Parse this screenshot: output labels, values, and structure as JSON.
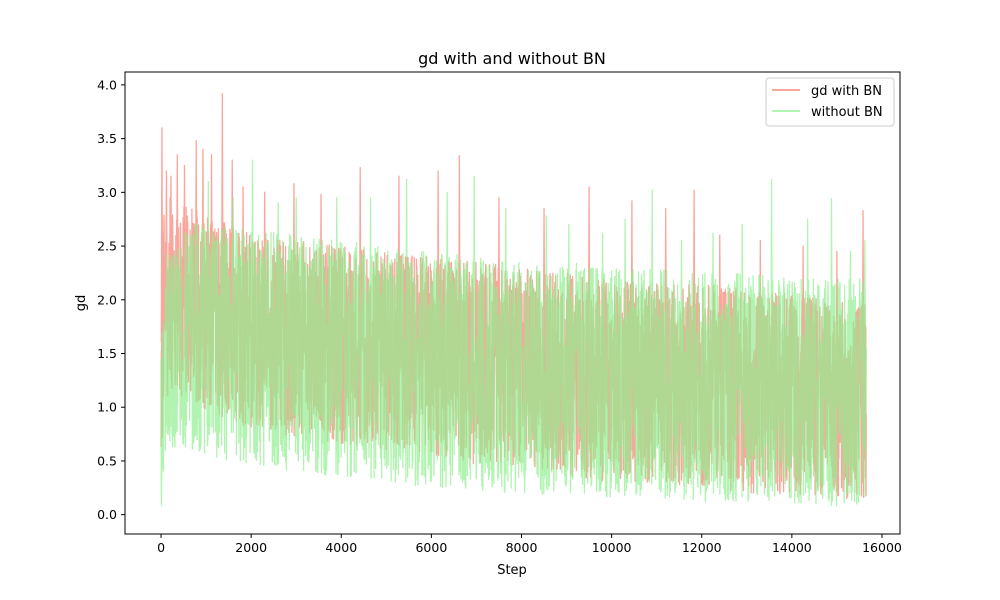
{
  "chart_data": {
    "type": "line",
    "title": "gd with and without BN",
    "xlabel": "Step",
    "ylabel": "gd",
    "xlim": [
      -800,
      16400
    ],
    "ylim": [
      -0.18,
      4.12
    ],
    "xticks": [
      0,
      2000,
      4000,
      6000,
      8000,
      10000,
      12000,
      14000,
      16000
    ],
    "xtick_labels": [
      "0",
      "2000",
      "4000",
      "6000",
      "8000",
      "10000",
      "12000",
      "14000",
      "16000"
    ],
    "yticks": [
      0.0,
      0.5,
      1.0,
      1.5,
      2.0,
      2.5,
      3.0,
      3.5,
      4.0
    ],
    "ytick_labels": [
      "0.0",
      "0.5",
      "1.0",
      "1.5",
      "2.0",
      "2.5",
      "3.0",
      "3.5",
      "4.0"
    ],
    "grid": false,
    "legend_position": "upper right",
    "series": [
      {
        "name": "gd with BN",
        "color": "#fa8072",
        "alpha": 0.7,
        "envelope": {
          "x": [
            0,
            100,
            300,
            700,
            1000,
            1400,
            2000,
            3000,
            4000,
            5000,
            6000,
            7000,
            8000,
            9000,
            10000,
            11000,
            12000,
            13000,
            14000,
            15000,
            15650
          ],
          "low": [
            0.25,
            1.1,
            1.1,
            1.05,
            0.95,
            0.9,
            0.8,
            0.72,
            0.65,
            0.6,
            0.55,
            0.45,
            0.45,
            0.35,
            0.3,
            0.3,
            0.25,
            0.2,
            0.18,
            0.15,
            0.15
          ],
          "high": [
            2.8,
            3.0,
            2.9,
            2.85,
            2.8,
            2.75,
            2.65,
            2.55,
            2.5,
            2.45,
            2.4,
            2.35,
            2.3,
            2.25,
            2.2,
            2.15,
            2.15,
            2.1,
            2.05,
            2.0,
            2.0
          ],
          "mean": [
            1.5,
            2.0,
            1.95,
            1.9,
            1.85,
            1.8,
            1.75,
            1.65,
            1.6,
            1.55,
            1.5,
            1.45,
            1.4,
            1.4,
            1.35,
            1.3,
            1.3,
            1.25,
            1.25,
            1.2,
            1.2
          ]
        },
        "spikes": [
          [
            20,
            3.6
          ],
          [
            120,
            3.2
          ],
          [
            220,
            3.15
          ],
          [
            360,
            3.35
          ],
          [
            520,
            3.25
          ],
          [
            780,
            3.48
          ],
          [
            930,
            3.4
          ],
          [
            1120,
            3.35
          ],
          [
            1360,
            3.92
          ],
          [
            1580,
            3.3
          ],
          [
            1820,
            3.05
          ],
          [
            2300,
            3.0
          ],
          [
            2950,
            3.08
          ],
          [
            3550,
            2.98
          ],
          [
            4420,
            3.23
          ],
          [
            5280,
            3.15
          ],
          [
            6150,
            3.2
          ],
          [
            6620,
            3.34
          ],
          [
            7500,
            2.95
          ],
          [
            8500,
            2.85
          ],
          [
            9500,
            3.05
          ],
          [
            10450,
            2.92
          ],
          [
            11200,
            2.85
          ],
          [
            11830,
            3.02
          ],
          [
            12400,
            2.6
          ],
          [
            13300,
            2.55
          ],
          [
            14250,
            2.5
          ],
          [
            15000,
            2.45
          ],
          [
            15580,
            2.83
          ]
        ]
      },
      {
        "name": "without BN",
        "color": "#90ee90",
        "alpha": 0.7,
        "envelope": {
          "x": [
            0,
            100,
            300,
            700,
            1000,
            1400,
            2000,
            3000,
            4000,
            5000,
            6000,
            7000,
            8000,
            9000,
            10000,
            11000,
            12000,
            13000,
            14000,
            15000,
            15650
          ],
          "low": [
            0.03,
            0.6,
            0.62,
            0.58,
            0.55,
            0.5,
            0.45,
            0.4,
            0.35,
            0.3,
            0.25,
            0.22,
            0.2,
            0.18,
            0.16,
            0.15,
            0.12,
            0.12,
            0.1,
            0.08,
            0.08
          ],
          "high": [
            1.5,
            2.55,
            2.6,
            2.7,
            2.75,
            2.7,
            2.65,
            2.6,
            2.55,
            2.5,
            2.45,
            2.4,
            2.35,
            2.35,
            2.3,
            2.3,
            2.25,
            2.25,
            2.2,
            2.2,
            2.2
          ],
          "mean": [
            0.8,
            1.6,
            1.7,
            1.75,
            1.75,
            1.7,
            1.65,
            1.6,
            1.55,
            1.5,
            1.45,
            1.4,
            1.35,
            1.32,
            1.3,
            1.28,
            1.25,
            1.25,
            1.22,
            1.2,
            1.2
          ]
        },
        "spikes": [
          [
            1050,
            3.1
          ],
          [
            1600,
            2.95
          ],
          [
            2030,
            3.3
          ],
          [
            2600,
            2.9
          ],
          [
            3000,
            2.95
          ],
          [
            3900,
            2.95
          ],
          [
            4650,
            2.95
          ],
          [
            5450,
            3.12
          ],
          [
            6350,
            3.0
          ],
          [
            6950,
            3.15
          ],
          [
            7650,
            2.85
          ],
          [
            8550,
            2.78
          ],
          [
            9050,
            2.7
          ],
          [
            9800,
            2.62
          ],
          [
            10300,
            2.75
          ],
          [
            10900,
            3.02
          ],
          [
            11550,
            2.55
          ],
          [
            12250,
            2.62
          ],
          [
            12900,
            2.7
          ],
          [
            13550,
            3.12
          ],
          [
            14350,
            2.75
          ],
          [
            14880,
            2.94
          ],
          [
            15300,
            2.45
          ],
          [
            15620,
            2.55
          ]
        ]
      }
    ]
  }
}
